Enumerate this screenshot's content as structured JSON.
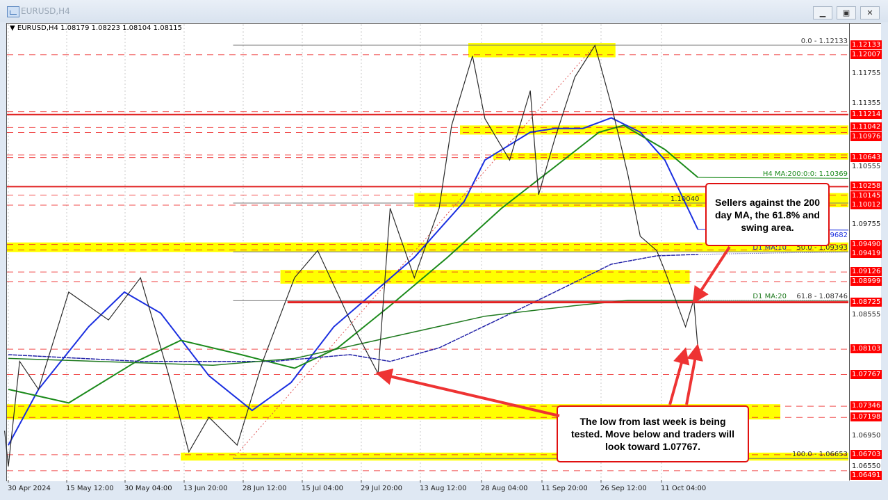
{
  "window": {
    "title": "EURUSD,H4",
    "icon": "chart-window-icon",
    "buttons": [
      "minimize",
      "restore",
      "close"
    ],
    "button_glyphs": [
      "▁",
      "▣",
      "✕"
    ]
  },
  "chart_data": {
    "type": "line",
    "header": {
      "symbol": "EURUSD,H4",
      "ohlc": "1.08179 1.08223 1.08104 1.08115"
    },
    "ylim": [
      1.0637,
      1.1241
    ],
    "x_ticks": [
      {
        "label": "30 Apr 2024",
        "date": "2024-04-30T00:00"
      },
      {
        "label": "15 May 12:00",
        "date": "2024-05-15T12:00"
      },
      {
        "label": "30 May 04:00",
        "date": "2024-05-30T04:00"
      },
      {
        "label": "13 Jun 20:00",
        "date": "2024-06-13T20:00"
      },
      {
        "label": "28 Jun 12:00",
        "date": "2024-06-28T12:00"
      },
      {
        "label": "15 Jul 04:00",
        "date": "2024-07-15T04:00"
      },
      {
        "label": "29 Jul 20:00",
        "date": "2024-07-29T20:00"
      },
      {
        "label": "13 Aug 12:00",
        "date": "2024-08-13T12:00"
      },
      {
        "label": "28 Aug 04:00",
        "date": "2024-08-28T04:00"
      },
      {
        "label": "11 Sep 20:00",
        "date": "2024-09-11T20:00"
      },
      {
        "label": "26 Sep 12:00",
        "date": "2024-09-26T12:00"
      },
      {
        "label": "11 Oct 04:00",
        "date": "2024-10-11T04:00"
      }
    ],
    "price_axis_labels": [
      "1.11755",
      "1.11355",
      "1.10555",
      "1.09755",
      "1.08555",
      "1.06950",
      "1.06550"
    ],
    "price_series": {
      "color": "#2a2a2a",
      "points": [
        [
          "2024-04-29",
          1.0702
        ],
        [
          "2024-04-30",
          1.0655
        ],
        [
          "2024-05-03",
          1.0794
        ],
        [
          "2024-05-08",
          1.0757
        ],
        [
          "2024-05-16",
          1.0886
        ],
        [
          "2024-05-26",
          1.0849
        ],
        [
          "2024-06-03",
          1.0905
        ],
        [
          "2024-06-10",
          1.0776
        ],
        [
          "2024-06-15",
          1.0674
        ],
        [
          "2024-06-20",
          1.072
        ],
        [
          "2024-06-27",
          1.0683
        ],
        [
          "2024-07-04",
          1.0794
        ],
        [
          "2024-07-13",
          1.0905
        ],
        [
          "2024-07-19",
          1.0941
        ],
        [
          "2024-07-27",
          1.0849
        ],
        [
          "2024-08-03",
          1.0778
        ],
        [
          "2024-08-06",
          1.0997
        ],
        [
          "2024-08-12",
          1.0905
        ],
        [
          "2024-08-18",
          1.0997
        ],
        [
          "2024-08-21",
          1.1107
        ],
        [
          "2024-08-26",
          1.1199
        ],
        [
          "2024-08-29",
          1.1116
        ],
        [
          "2024-09-04",
          1.1061
        ],
        [
          "2024-09-09",
          1.1153
        ],
        [
          "2024-09-11",
          1.1015
        ],
        [
          "2024-09-15",
          1.1089
        ],
        [
          "2024-09-20",
          1.1171
        ],
        [
          "2024-09-25",
          1.1213
        ],
        [
          "2024-09-29",
          1.1134
        ],
        [
          "2024-10-03",
          1.1042
        ],
        [
          "2024-10-06",
          1.096
        ],
        [
          "2024-10-10",
          1.0941
        ],
        [
          "2024-10-12",
          1.0914
        ],
        [
          "2024-10-17",
          1.084
        ],
        [
          "2024-10-19",
          1.0876
        ],
        [
          "2024-10-20",
          1.0811
        ]
      ]
    },
    "moving_averages": [
      {
        "label": "1.09682",
        "color": "#1a2fe0",
        "width": 2,
        "end_label_price": 1.09682,
        "points": [
          [
            "2024-04-30",
            1.0683
          ],
          [
            "2024-05-08",
            1.0757
          ],
          [
            "2024-05-21",
            1.084
          ],
          [
            "2024-05-30",
            1.0886
          ],
          [
            "2024-06-08",
            1.0858
          ],
          [
            "2024-06-20",
            1.0775
          ],
          [
            "2024-07-01",
            1.0729
          ],
          [
            "2024-07-12",
            1.0766
          ],
          [
            "2024-07-23",
            1.084
          ],
          [
            "2024-08-02",
            1.0886
          ],
          [
            "2024-08-12",
            1.0932
          ],
          [
            "2024-08-24",
            1.1006
          ],
          [
            "2024-08-29",
            1.1061
          ],
          [
            "2024-09-09",
            1.1098
          ],
          [
            "2024-09-15",
            1.1103
          ],
          [
            "2024-09-22",
            1.1103
          ],
          [
            "2024-09-29",
            1.1117
          ],
          [
            "2024-10-06",
            1.1098
          ],
          [
            "2024-10-12",
            1.1061
          ],
          [
            "2024-10-20",
            1.0969
          ]
        ]
      },
      {
        "label": "H4 MA:200:0:0: 1.10369",
        "color": "#1b8a1b",
        "width": 2,
        "end_label_price": 1.10369,
        "points": [
          [
            "2024-04-30",
            1.0757
          ],
          [
            "2024-05-16",
            1.0739
          ],
          [
            "2024-06-02",
            1.0794
          ],
          [
            "2024-06-13",
            1.0822
          ],
          [
            "2024-06-28",
            1.0803
          ],
          [
            "2024-07-13",
            1.0785
          ],
          [
            "2024-07-24",
            1.0812
          ],
          [
            "2024-08-06",
            1.0868
          ],
          [
            "2024-08-20",
            1.0932
          ],
          [
            "2024-09-02",
            1.0997
          ],
          [
            "2024-09-15",
            1.1052
          ],
          [
            "2024-09-26",
            1.1098
          ],
          [
            "2024-10-02",
            1.1107
          ],
          [
            "2024-10-12",
            1.1075
          ],
          [
            "2024-10-20",
            1.1038
          ]
        ]
      },
      {
        "label": "D1 MA:10",
        "color": "#2323a8",
        "width": 1.5,
        "end_label_price": 1.09393,
        "points": [
          [
            "2024-04-30",
            1.0803
          ],
          [
            "2024-06-03",
            1.0794
          ],
          [
            "2024-07-07",
            1.0794
          ],
          [
            "2024-07-27",
            1.0803
          ],
          [
            "2024-08-06",
            1.0794
          ],
          [
            "2024-08-18",
            1.0812
          ],
          [
            "2024-09-01",
            1.0849
          ],
          [
            "2024-09-15",
            1.0886
          ],
          [
            "2024-09-29",
            1.0923
          ],
          [
            "2024-10-10",
            1.0934
          ],
          [
            "2024-10-20",
            1.0936
          ]
        ]
      },
      {
        "label": "D1 MA:20",
        "color": "#1f7a1f",
        "width": 1.5,
        "end_label_price": 1.08746,
        "points": [
          [
            "2024-04-30",
            1.0798
          ],
          [
            "2024-06-21",
            1.0789
          ],
          [
            "2024-07-13",
            1.0798
          ],
          [
            "2024-08-06",
            1.0826
          ],
          [
            "2024-08-29",
            1.0854
          ],
          [
            "2024-09-20",
            1.0868
          ],
          [
            "2024-10-03",
            1.0875
          ],
          [
            "2024-10-17",
            1.0875
          ],
          [
            "2024-10-20",
            1.0875
          ]
        ]
      }
    ],
    "zones": [
      {
        "top": 1.12133,
        "bottom": 1.12,
        "from": "2024-08-25",
        "to": "2024-09-30"
      },
      {
        "top": 1.11042,
        "bottom": 1.10976,
        "from": "2024-08-23",
        "to": null
      },
      {
        "top": 1.10677,
        "bottom": 1.10643,
        "from": "2024-08-31",
        "to": null
      },
      {
        "top": 1.10145,
        "bottom": 1.10012,
        "from": "2024-08-12",
        "to": null
      },
      {
        "top": 1.0949,
        "bottom": 1.09419,
        "from": null,
        "to": null
      },
      {
        "top": 1.09126,
        "bottom": 1.08999,
        "from": "2024-07-09",
        "to": "2024-10-18"
      },
      {
        "top": 1.07346,
        "bottom": 1.07198,
        "from": null,
        "to": "2024-11-09"
      },
      {
        "top": 1.06703,
        "bottom": 1.06653,
        "from": "2024-06-13",
        "to": null
      }
    ],
    "zone_color": "#ffff00",
    "solid_levels": [
      {
        "price": 1.11214,
        "from": null,
        "thick": false
      },
      {
        "price": 1.10258,
        "from": null,
        "thick": false
      },
      {
        "price": 1.08725,
        "from": "2024-07-11",
        "thick": true
      }
    ],
    "dashed_levels": [
      1.12007,
      1.11252,
      1.11042,
      1.10976,
      1.10677,
      1.10643,
      1.10145,
      1.10012,
      1.0949,
      1.09419,
      1.09126,
      1.08999,
      1.08103,
      1.07767,
      1.07346,
      1.07198,
      1.06703,
      1.06491
    ],
    "level_color": "#ee2222",
    "red_price_labels": [
      "1.12133",
      "1.12007",
      "1.11214",
      "1.11042",
      "1.10976",
      "1.10643",
      "1.10258",
      "1.10145",
      "1.10012",
      "1.09490",
      "1.09419",
      "1.09126",
      "1.08999",
      "1.08725",
      "1.08103",
      "1.07767",
      "1.07346",
      "1.07198",
      "1.06703",
      "1.06491"
    ],
    "fibonacci": {
      "from": "2024-06-26",
      "trend_from": [
        "2024-06-26",
        1.06653
      ],
      "trend_to": [
        "2024-09-25",
        1.12133
      ],
      "levels": [
        {
          "label": "0.0 - 1.12133",
          "price": 1.12133
        },
        {
          "label": "1.10040",
          "price": 1.1004
        },
        {
          "label": "50.0 - 1.09393",
          "price": 1.09393
        },
        {
          "label": "61.8 - 1.08746",
          "price": 1.08746
        },
        {
          "label": "100.0 - 1.06653",
          "price": 1.06653
        }
      ]
    },
    "annotations": [
      {
        "text": "Sellers against the 200 day MA, the 61.8% and swing area."
      },
      {
        "text": "The low from last week is being tested.  Move below and traders will look toward 1.07767."
      }
    ],
    "annotation_color": "#ee3333"
  }
}
